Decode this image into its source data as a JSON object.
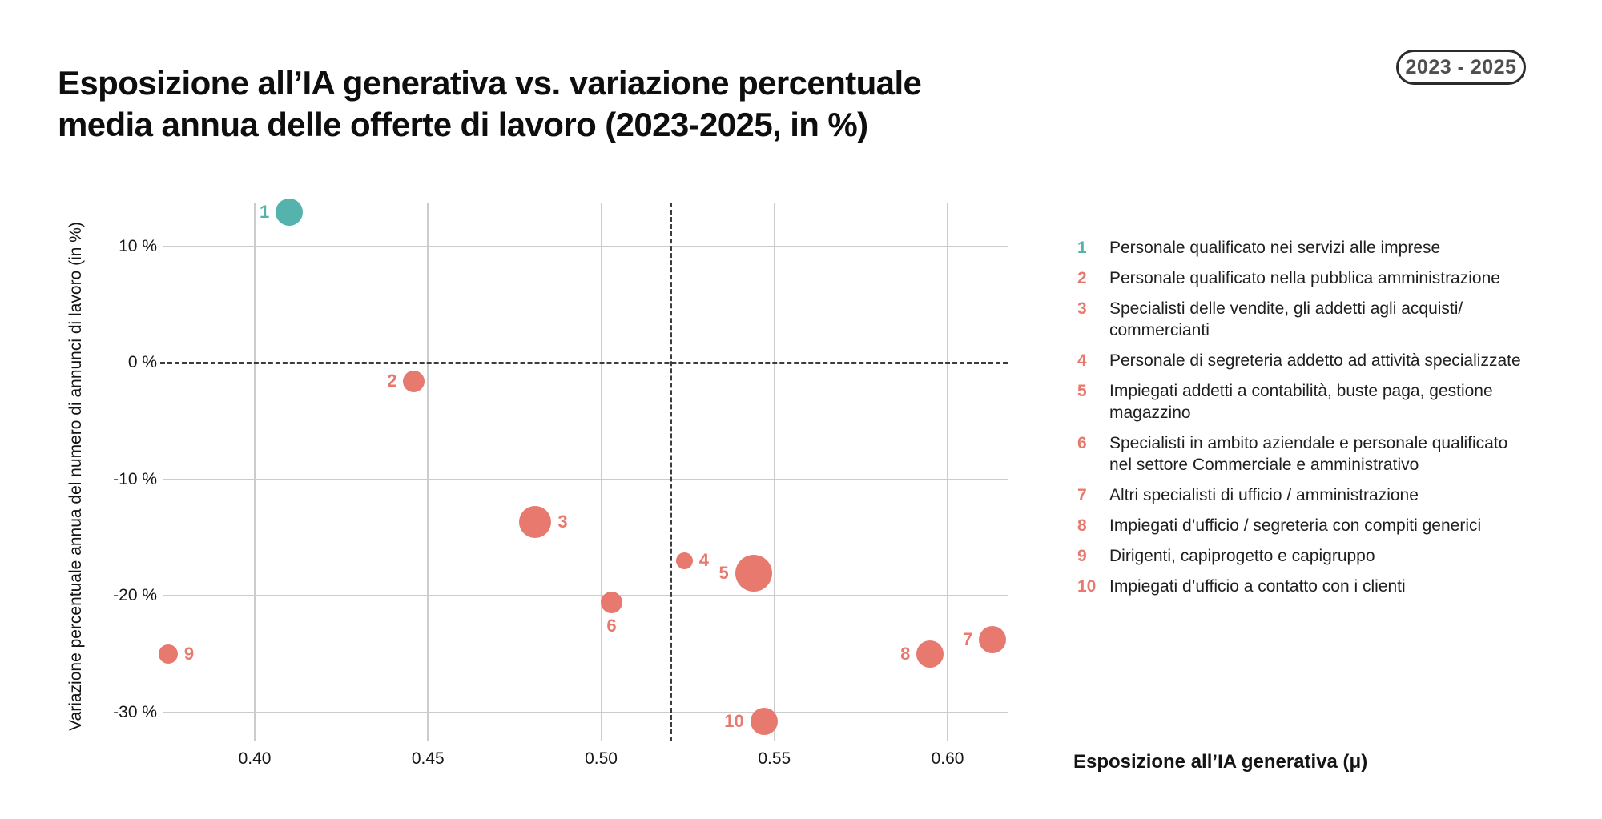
{
  "header": {
    "title_line1": "Esposizione all’IA generativa vs. variazione percentuale",
    "title_line2": "media annua delle offerte di lavoro (2023-2025, in %)",
    "badge": "2023 - 2025"
  },
  "colors": {
    "teal": "#54b3ac",
    "salmon": "#e8796e",
    "grid": "#cccccc",
    "dashed_line": "#3d3d3d"
  },
  "chart_data": {
    "type": "scatter",
    "title": "Esposizione all’IA generativa vs. variazione percentuale media annua delle offerte di lavoro (2023-2025, in %)",
    "xlabel": "Esposizione all’IA generativa (μ)",
    "ylabel": "Variazione percentuale annua del numero di annunci di lavoro (in %)",
    "xlim": [
      0.373,
      0.617
    ],
    "ylim": [
      -33,
      14
    ],
    "grid": true,
    "x_ticks": [
      {
        "value": 0.4,
        "label": "0.40"
      },
      {
        "value": 0.45,
        "label": "0.45"
      },
      {
        "value": 0.5,
        "label": "0.50"
      },
      {
        "value": 0.55,
        "label": "0.55"
      },
      {
        "value": 0.6,
        "label": "0.60"
      }
    ],
    "y_ticks": [
      {
        "value": 10,
        "label": "10 %"
      },
      {
        "value": 0,
        "label": "0 %"
      },
      {
        "value": -10,
        "label": "-10 %"
      },
      {
        "value": -20,
        "label": "-20 %"
      },
      {
        "value": -30,
        "label": "-30 %"
      }
    ],
    "reference_lines": {
      "horizontal_y": 0,
      "vertical_x": 0.52
    },
    "points": [
      {
        "id": "1",
        "x": 0.41,
        "y": 12.9,
        "size": 34,
        "color": "#54b3ac",
        "label_side": "left"
      },
      {
        "id": "2",
        "x": 0.446,
        "y": -1.6,
        "size": 27,
        "color": "#e8796e",
        "label_side": "left"
      },
      {
        "id": "3",
        "x": 0.481,
        "y": -13.7,
        "size": 40,
        "color": "#e8796e",
        "label_side": "right"
      },
      {
        "id": "4",
        "x": 0.524,
        "y": -17.0,
        "size": 21,
        "color": "#e8796e",
        "label_side": "right"
      },
      {
        "id": "5",
        "x": 0.544,
        "y": -18.1,
        "size": 46,
        "color": "#e8796e",
        "label_side": "left"
      },
      {
        "id": "6",
        "x": 0.503,
        "y": -20.6,
        "size": 27,
        "color": "#e8796e",
        "label_side": "below"
      },
      {
        "id": "7",
        "x": 0.613,
        "y": -23.8,
        "size": 34,
        "color": "#e8796e",
        "label_side": "left"
      },
      {
        "id": "8",
        "x": 0.595,
        "y": -25.0,
        "size": 34,
        "color": "#e8796e",
        "label_side": "left"
      },
      {
        "id": "9",
        "x": 0.375,
        "y": -25.0,
        "size": 24,
        "color": "#e8796e",
        "label_side": "right"
      },
      {
        "id": "10",
        "x": 0.547,
        "y": -30.8,
        "size": 34,
        "color": "#e8796e",
        "label_side": "left"
      }
    ],
    "legend_position": "right"
  },
  "legend": {
    "items": [
      {
        "num": "1",
        "color": "#54b3ac",
        "lines": [
          "Personale qualificato nei servizi alle imprese"
        ]
      },
      {
        "num": "2",
        "color": "#e8796e",
        "lines": [
          "Personale qualificato nella pubblica amministrazione"
        ]
      },
      {
        "num": "3",
        "color": "#e8796e",
        "lines": [
          "Specialisti delle vendite, gli addetti agli acquisti/",
          "commercianti"
        ]
      },
      {
        "num": "4",
        "color": "#e8796e",
        "lines": [
          "Personale di segreteria addetto ad attività specializzate"
        ]
      },
      {
        "num": "5",
        "color": "#e8796e",
        "lines": [
          "Impiegati addetti a contabilità, buste paga, gestione",
          "magazzino"
        ]
      },
      {
        "num": "6",
        "color": "#e8796e",
        "lines": [
          "Specialisti in ambito aziendale e personale qualificato",
          "nel settore Commerciale e amministrativo"
        ]
      },
      {
        "num": "7",
        "color": "#e8796e",
        "lines": [
          "Altri specialisti di ufficio / amministrazione"
        ]
      },
      {
        "num": "8",
        "color": "#e8796e",
        "lines": [
          "Impiegati d’ufficio / segreteria con compiti generici"
        ]
      },
      {
        "num": "9",
        "color": "#e8796e",
        "lines": [
          "Dirigenti, capiprogetto e capigruppo"
        ]
      },
      {
        "num": "10",
        "color": "#e8796e",
        "lines": [
          "Impiegati d’ufficio a contatto con i clienti"
        ]
      }
    ]
  }
}
